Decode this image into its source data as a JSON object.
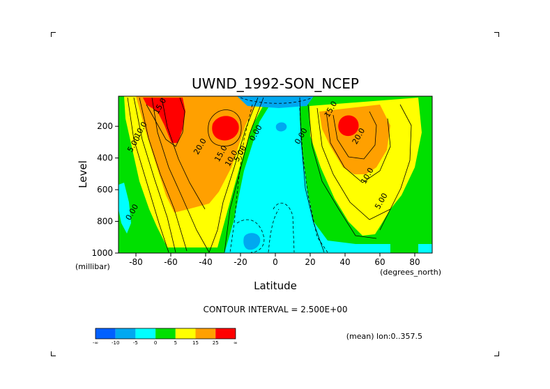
{
  "chart_data": {
    "type": "heatmap",
    "title": "UWND_1992-SON_NCEP",
    "xlabel": "Latitude",
    "ylabel": "Level",
    "x_unit": "(degrees_north)",
    "y_unit": "(millibar)",
    "xlim": [
      -90,
      90
    ],
    "ylim": [
      1000,
      10
    ],
    "x_ticks": [
      -80,
      -60,
      -40,
      -20,
      0,
      20,
      40,
      60,
      80
    ],
    "y_ticks": [
      200,
      400,
      600,
      800,
      1000
    ],
    "contour_interval_text": "CONTOUR INTERVAL = 2.500E+00",
    "footnote": "(mean) lon:0..357.5",
    "colorbar": {
      "tick_labels": [
        "-∞",
        "-10",
        "-5",
        "0",
        "5",
        "15",
        "25",
        "∞"
      ],
      "colors": [
        "#0060ff",
        "#00a8f0",
        "#00ffff",
        "#00e000",
        "#ffff00",
        "#ffa000",
        "#ff0000"
      ]
    },
    "contour_labels": [
      {
        "text": "15.0",
        "x": -65,
        "y": 80
      },
      {
        "text": "10.0",
        "x": -76,
        "y": 230
      },
      {
        "text": "5.00",
        "x": -80,
        "y": 320
      },
      {
        "text": "20.0",
        "x": -42,
        "y": 335
      },
      {
        "text": "15.0",
        "x": -30,
        "y": 380
      },
      {
        "text": "10.0",
        "x": -24,
        "y": 410
      },
      {
        "text": "5.00",
        "x": -19,
        "y": 380
      },
      {
        "text": "0.00",
        "x": -10,
        "y": 250
      },
      {
        "text": "0.00",
        "x": 16,
        "y": 270
      },
      {
        "text": "15.0",
        "x": 33,
        "y": 100
      },
      {
        "text": "20.0",
        "x": 49,
        "y": 270
      },
      {
        "text": "10.0",
        "x": 54,
        "y": 520
      },
      {
        "text": "5.00",
        "x": 62,
        "y": 680
      },
      {
        "text": "0.00",
        "x": -81,
        "y": 750
      }
    ],
    "jets": [
      {
        "name_text": "",
        "lat": -58,
        "level": 80,
        "max": 30
      },
      {
        "name_text": "",
        "lat": -30,
        "level": 200,
        "max": 27
      },
      {
        "name_text": "",
        "lat": 42,
        "level": 200,
        "max": 27
      }
    ]
  }
}
